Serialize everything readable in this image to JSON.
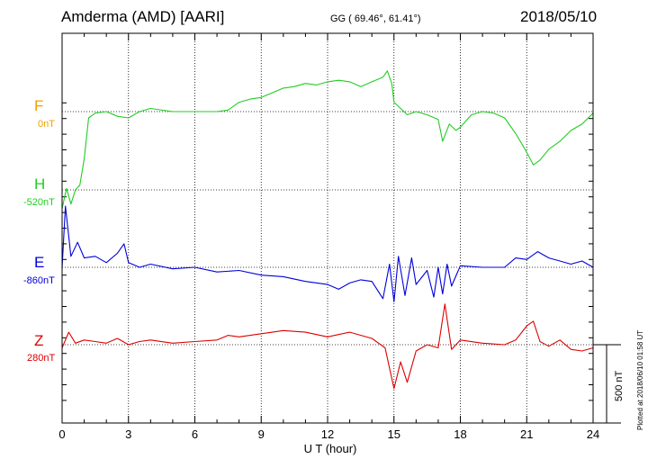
{
  "header": {
    "station": "Amderma (AMD)  [AARI]",
    "coords": "GG ( 69.46°,  61.41°)",
    "date": "2018/05/10",
    "plotted": "Plotted at 2018/06/10 01:58 UT"
  },
  "components": [
    {
      "letter": "F",
      "baseline": "0nT",
      "color": "#f0a000"
    },
    {
      "letter": "H",
      "baseline": "-520nT",
      "color": "#22cc22"
    },
    {
      "letter": "E",
      "baseline": "-860nT",
      "color": "#0000dd"
    },
    {
      "letter": "Z",
      "baseline": "280nT",
      "color": "#dd0000"
    }
  ],
  "scale_bar": {
    "label": "500 nT"
  },
  "chart_data": {
    "type": "line",
    "xlabel": "U T (hour)",
    "xlim": [
      0,
      24
    ],
    "xticks": [
      0,
      3,
      6,
      9,
      12,
      15,
      18,
      21,
      24
    ],
    "ylabel": "",
    "grid": true,
    "y_units": "nT offset from each component baseline",
    "y_range_visible": [
      -860,
      1060
    ],
    "series": [
      {
        "name": "H",
        "x": [
          0,
          0.2,
          0.4,
          0.6,
          0.8,
          1.0,
          1.2,
          1.5,
          2,
          2.5,
          3,
          3.5,
          4,
          5,
          6,
          7,
          7.5,
          8,
          8.5,
          9,
          9.5,
          10,
          10.5,
          11,
          11.5,
          12,
          12.5,
          13,
          13.5,
          14,
          14.5,
          14.7,
          14.9,
          15,
          15.3,
          15.6,
          16,
          16.5,
          17,
          17.2,
          17.5,
          17.8,
          18,
          18.5,
          19,
          19.5,
          20,
          20.5,
          21,
          21.3,
          21.6,
          22,
          22.5,
          23,
          23.5,
          24
        ],
        "values": [
          -120,
          10,
          -90,
          0,
          30,
          200,
          460,
          490,
          500,
          470,
          460,
          500,
          520,
          500,
          500,
          500,
          510,
          560,
          580,
          590,
          620,
          650,
          660,
          680,
          670,
          690,
          700,
          690,
          660,
          690,
          720,
          760,
          680,
          560,
          520,
          480,
          500,
          480,
          450,
          310,
          420,
          380,
          400,
          480,
          500,
          490,
          460,
          360,
          240,
          160,
          190,
          260,
          310,
          380,
          420,
          490
        ]
      },
      {
        "name": "E",
        "x": [
          0,
          0.15,
          0.4,
          0.7,
          1,
          1.5,
          2,
          2.5,
          2.8,
          3,
          3.5,
          4,
          5,
          6,
          7,
          8,
          9,
          10,
          11,
          12,
          12.5,
          13,
          13.5,
          14,
          14.5,
          14.8,
          15,
          15.2,
          15.5,
          15.8,
          16,
          16.5,
          16.8,
          17,
          17.2,
          17.4,
          17.6,
          18,
          19,
          20,
          20.5,
          21,
          21.5,
          22,
          22.5,
          23,
          23.5,
          24
        ],
        "values": [
          0,
          390,
          70,
          160,
          60,
          70,
          30,
          90,
          150,
          30,
          0,
          20,
          -10,
          0,
          -30,
          -20,
          -50,
          -60,
          -90,
          -110,
          -140,
          -100,
          -80,
          -90,
          -200,
          20,
          -220,
          70,
          -180,
          60,
          -110,
          -20,
          -190,
          0,
          -170,
          20,
          -120,
          10,
          0,
          0,
          60,
          50,
          100,
          60,
          40,
          20,
          40,
          0
        ]
      },
      {
        "name": "Z",
        "x": [
          0,
          0.3,
          0.6,
          1,
          1.5,
          2,
          2.5,
          3,
          3.5,
          4,
          5,
          6,
          7,
          7.5,
          8,
          9,
          10,
          11,
          12,
          13,
          14,
          14.6,
          15,
          15.3,
          15.6,
          16,
          16.5,
          17,
          17.3,
          17.6,
          18,
          19,
          20,
          20.5,
          21,
          21.3,
          21.6,
          22,
          22.5,
          23,
          23.5,
          24
        ],
        "values": [
          -20,
          80,
          10,
          30,
          20,
          10,
          40,
          0,
          20,
          30,
          10,
          20,
          30,
          60,
          50,
          70,
          90,
          80,
          50,
          80,
          40,
          -20,
          -280,
          -110,
          -240,
          -40,
          0,
          -20,
          260,
          -30,
          30,
          10,
          0,
          30,
          120,
          150,
          20,
          -10,
          30,
          -30,
          -40,
          -20
        ]
      }
    ]
  }
}
